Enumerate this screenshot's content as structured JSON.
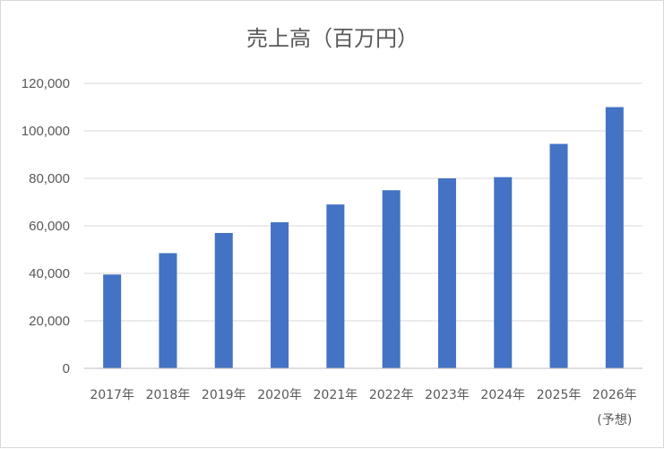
{
  "chart_data": {
    "type": "bar",
    "title": "売上高（百万円）",
    "xlabel": "",
    "ylabel": "",
    "categories": [
      "2017年",
      "2018年",
      "2019年",
      "2020年",
      "2021年",
      "2022年",
      "2023年",
      "2024年",
      "2025年",
      "2026年"
    ],
    "category_notes": [
      "",
      "",
      "",
      "",
      "",
      "",
      "",
      "",
      "",
      "(予想)"
    ],
    "values": [
      39500,
      48500,
      57000,
      61500,
      69000,
      75000,
      80000,
      80500,
      94500,
      110000
    ],
    "ylim": [
      0,
      120000
    ],
    "yticks": [
      0,
      20000,
      40000,
      60000,
      80000,
      100000,
      120000
    ],
    "ytick_labels": [
      "0",
      "20,000",
      "40,000",
      "60,000",
      "80,000",
      "100,000",
      "120,000"
    ],
    "grid": true,
    "legend": "none",
    "bar_color": "#4472c4"
  }
}
